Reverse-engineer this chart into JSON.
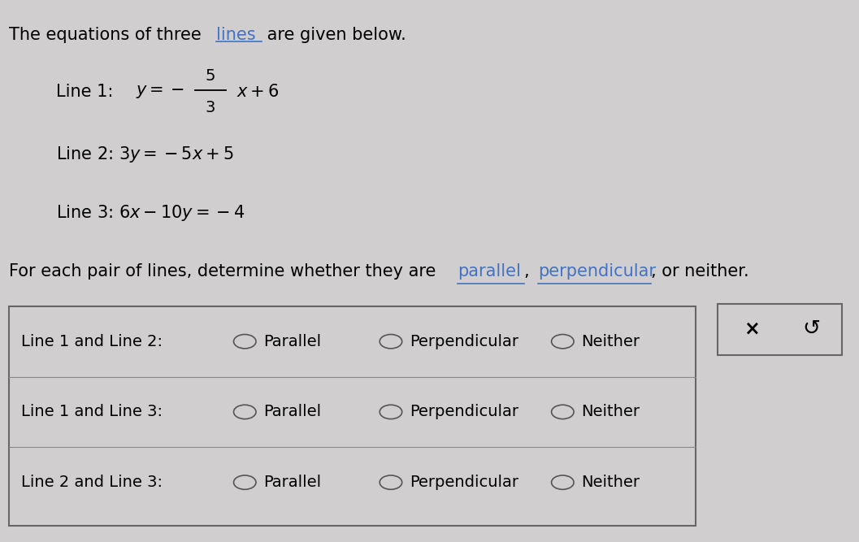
{
  "bg_color": "#d0cece",
  "text_color": "#000000",
  "link_color": "#4472c4",
  "pairs": [
    "Line 1 and Line 2:",
    "Line 1 and Line 3:",
    "Line 2 and Line 3:"
  ],
  "options": [
    "Parallel",
    "Perpendicular",
    "Neither"
  ],
  "font_size_main": 15,
  "font_size_eq": 15,
  "font_size_tbl": 14
}
